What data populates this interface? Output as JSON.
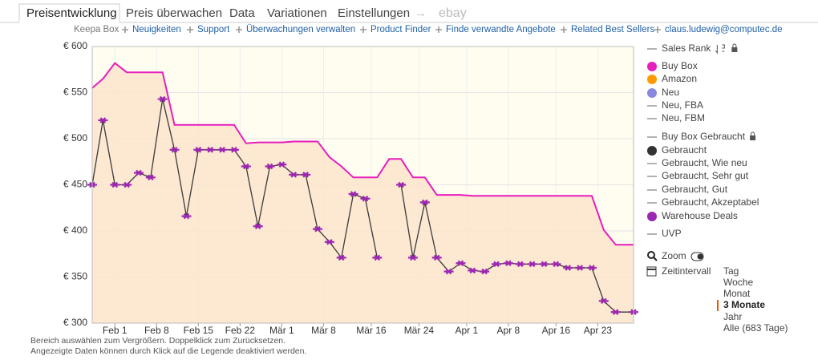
{
  "tabs": [
    "Preisentwicklung",
    "Preis überwachen",
    "Data",
    "Variationen",
    "Einstellungen"
  ],
  "arrow": "→",
  "ebay": "ebay",
  "links": [
    "Keepa Box",
    "Neuigkeiten",
    "Support",
    "Überwachungen verwalten",
    "Product Finder",
    "Finde verwandte Angebote",
    "Related Best Sellers",
    "claus.ludewig@computec.de"
  ],
  "chart_data": {
    "type": "line",
    "x": [
      -3.8,
      -2,
      0,
      2,
      4,
      6,
      8,
      10,
      12,
      14,
      16,
      18,
      20,
      22,
      24,
      26,
      28,
      30,
      32,
      34,
      36,
      38,
      40,
      42,
      44,
      46,
      48,
      50,
      52,
      54,
      56,
      58,
      60,
      62,
      64,
      66,
      68,
      70,
      72,
      74,
      76,
      78,
      80,
      82,
      84,
      87
    ],
    "xlim": [
      -3.8,
      87
    ],
    "xticks": [
      {
        "value": 0,
        "label": "Feb 1"
      },
      {
        "value": 7,
        "label": "Feb 8"
      },
      {
        "value": 14,
        "label": "Feb 15"
      },
      {
        "value": 21,
        "label": "Feb 22"
      },
      {
        "value": 28,
        "label": "Mär 1"
      },
      {
        "value": 35,
        "label": "Mär 8"
      },
      {
        "value": 43,
        "label": "Mär 16"
      },
      {
        "value": 51,
        "label": "Mär 24"
      },
      {
        "value": 59,
        "label": "Apr 1"
      },
      {
        "value": 66,
        "label": "Apr 8"
      },
      {
        "value": 74,
        "label": "Apr 16"
      },
      {
        "value": 81,
        "label": "Apr 23"
      }
    ],
    "ylim": [
      300,
      600
    ],
    "yticks": [
      {
        "value": 300,
        "label": "€ 300"
      },
      {
        "value": 350,
        "label": "€ 350"
      },
      {
        "value": 400,
        "label": "€ 400"
      },
      {
        "value": 450,
        "label": "€ 450"
      },
      {
        "value": 500,
        "label": "€ 500"
      },
      {
        "value": 550,
        "label": "€ 550"
      },
      {
        "value": 600,
        "label": "€ 600"
      }
    ],
    "grid": true,
    "series": [
      {
        "name": "Buy Box",
        "color": "#e61ebe",
        "values": [
          555,
          565,
          582,
          572,
          572,
          572,
          572,
          515,
          515,
          515,
          515,
          515,
          515,
          495,
          496,
          496,
          496,
          497,
          497,
          497,
          480,
          470,
          458,
          458,
          458,
          478,
          478,
          458,
          458,
          439,
          439,
          439,
          438,
          438,
          438,
          438,
          438,
          438,
          438,
          438,
          438,
          438,
          438,
          401,
          385,
          385
        ]
      },
      {
        "name": "Warehouse Deals",
        "color": "#9c27b0",
        "values": [
          450,
          520,
          450,
          450,
          463,
          458,
          543,
          488,
          416,
          488,
          488,
          488,
          488,
          470,
          405,
          470,
          472,
          461,
          461,
          402,
          388,
          371,
          440,
          435,
          371,
          null,
          450,
          371,
          431,
          371,
          356,
          365,
          357,
          356,
          364,
          365,
          364,
          364,
          364,
          364,
          360,
          360,
          360,
          324,
          312,
          312
        ]
      }
    ]
  },
  "legend": [
    {
      "label": "Sales Rank"
    },
    {
      "label": "Buy Box",
      "color": "#e61ebe"
    },
    {
      "label": "Amazon",
      "color": "#ff9900"
    },
    {
      "label": "Neu",
      "color": "#8888dd"
    },
    {
      "label": "Neu, FBA"
    },
    {
      "label": "Neu, FBM"
    },
    {
      "label": "Buy Box Gebraucht"
    },
    {
      "label": "Gebraucht",
      "color": "#333333"
    },
    {
      "label": "Gebraucht, Wie neu"
    },
    {
      "label": "Gebraucht, Sehr gut"
    },
    {
      "label": "Gebraucht, Gut"
    },
    {
      "label": "Gebraucht, Akzeptabel"
    },
    {
      "label": "Warehouse Deals",
      "color": "#9c27b0"
    },
    {
      "label": "UVP"
    }
  ],
  "zoom": "Zoom",
  "interval": {
    "title": "Zeitintervall",
    "options": [
      "Tag",
      "Woche",
      "Monat",
      "3 Monate",
      "Jahr",
      "Alle (683 Tage)"
    ],
    "active": 3
  },
  "footer": [
    "Bereich auswählen zum Vergrößern. Doppelklick zum Zurücksetzen.",
    "Angezeigte Daten können durch Klick auf die Legende deaktiviert werden."
  ]
}
